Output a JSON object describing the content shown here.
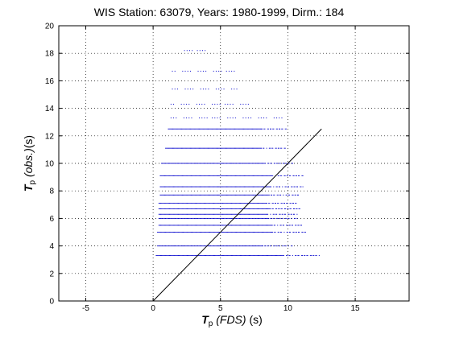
{
  "chart_data": {
    "type": "scatter",
    "title": "WIS Station: 63079, Years: 1980-1999, Dirm.: 184",
    "xlabel": {
      "symbol": "T",
      "subscript": "p",
      "text": " (FDS) ",
      "unit": "(s)"
    },
    "ylabel": {
      "symbol": "T",
      "subscript": "p",
      "text": " (obs.)",
      "unit": "(s)"
    },
    "xlim": [
      -7,
      19
    ],
    "ylim": [
      0,
      20
    ],
    "xticks": [
      -5,
      0,
      5,
      10,
      15
    ],
    "yticks": [
      0,
      2,
      4,
      6,
      8,
      10,
      12,
      14,
      16,
      18,
      20
    ],
    "grid": true,
    "reference_line": {
      "x": [
        0,
        12.5
      ],
      "y": [
        0,
        12.5
      ]
    },
    "series": [
      {
        "color": "#0000cc",
        "rows": [
          {
            "y": 3.3,
            "x_min": 0.2,
            "x_max": 12.3
          },
          {
            "y": 4.0,
            "x_min": 0.3,
            "x_max": 10.4
          },
          {
            "y": 5.0,
            "x_min": 0.3,
            "x_max": 11.3
          },
          {
            "y": 5.5,
            "x_min": 0.4,
            "x_max": 11.1
          },
          {
            "y": 6.0,
            "x_min": 0.4,
            "x_max": 10.7
          },
          {
            "y": 6.3,
            "x_min": 0.4,
            "x_max": 10.7
          },
          {
            "y": 6.7,
            "x_min": 0.4,
            "x_max": 11.0
          },
          {
            "y": 7.1,
            "x_min": 0.4,
            "x_max": 10.7
          },
          {
            "y": 7.7,
            "x_min": 0.5,
            "x_max": 10.8
          },
          {
            "y": 8.3,
            "x_min": 0.5,
            "x_max": 11.1
          },
          {
            "y": 9.1,
            "x_min": 0.5,
            "x_max": 11.2
          },
          {
            "y": 10.0,
            "x_min": 0.6,
            "x_max": 10.4
          },
          {
            "y": 11.1,
            "x_min": 0.9,
            "x_max": 9.9
          },
          {
            "y": 12.5,
            "x_min": 1.1,
            "x_max": 9.9
          },
          {
            "y": 13.3,
            "x_min": 1.3,
            "x_max": 9.6
          },
          {
            "y": 14.3,
            "x_min": 1.3,
            "x_max": 7.4
          },
          {
            "y": 15.4,
            "x_min": 1.4,
            "x_max": 6.2
          },
          {
            "y": 16.7,
            "x_min": 1.4,
            "x_max": 6.1
          },
          {
            "y": 18.2,
            "x_min": 2.3,
            "x_max": 4.0
          }
        ]
      }
    ]
  }
}
